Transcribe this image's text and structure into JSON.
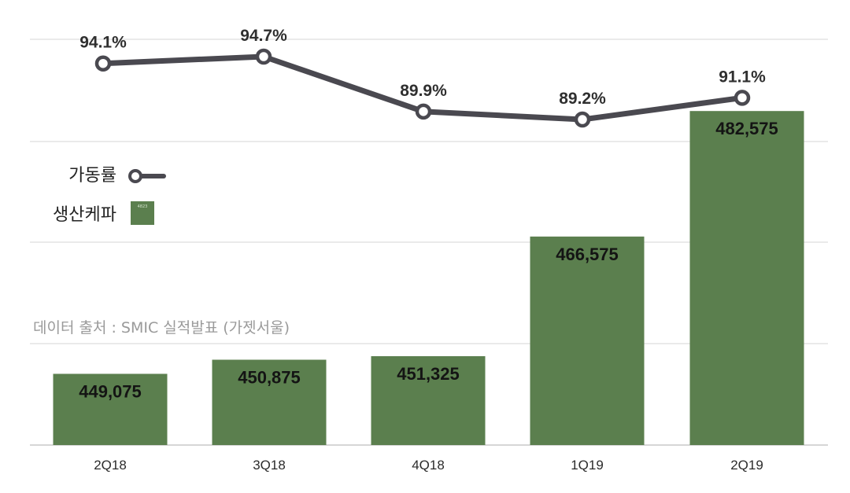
{
  "chart_data": {
    "type": "bar",
    "categories": [
      "2Q18",
      "3Q18",
      "4Q18",
      "1Q19",
      "2Q19"
    ],
    "bar_values": [
      449075,
      450875,
      451325,
      466575,
      482575
    ],
    "bar_labels": [
      "449,075",
      "450,875",
      "451,325",
      "466,575",
      "482,575"
    ],
    "line_values": [
      94.1,
      94.7,
      89.9,
      89.2,
      91.1
    ],
    "line_labels": [
      "94.1%",
      "94.7%",
      "89.9%",
      "89.2%",
      "91.1%"
    ],
    "legend": [
      {
        "label": "가동률",
        "kind": "line"
      },
      {
        "label": "생산케파",
        "kind": "bar"
      }
    ],
    "legend_tag": "4823",
    "source_note": "데이터 출처 : SMIC 실적발표 (가젯서울)",
    "bar_color": "#5b7f4e",
    "line_color": "#4a4950",
    "grid": true
  }
}
